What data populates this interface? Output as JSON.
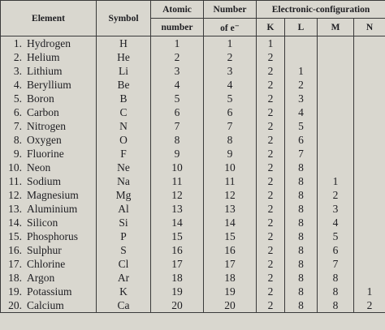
{
  "header": {
    "element": "Element",
    "symbol": "Symbol",
    "atomic": [
      "Atomic",
      "number"
    ],
    "electrons": [
      "Number",
      "of e⁻"
    ],
    "configuration": "Electronic-configuration",
    "shells": [
      "K",
      "L",
      "M",
      "N"
    ]
  },
  "rows": [
    {
      "no": "1.",
      "element": "Hydrogen",
      "symbol": "H",
      "atomic": 1,
      "electrons": 1,
      "config": [
        1
      ]
    },
    {
      "no": "2.",
      "element": "Helium",
      "symbol": "He",
      "atomic": 2,
      "electrons": 2,
      "config": [
        2
      ]
    },
    {
      "no": "3.",
      "element": "Lithium",
      "symbol": "Li",
      "atomic": 3,
      "electrons": 3,
      "config": [
        2,
        1
      ]
    },
    {
      "no": "4.",
      "element": "Beryllium",
      "symbol": "Be",
      "atomic": 4,
      "electrons": 4,
      "config": [
        2,
        2
      ]
    },
    {
      "no": "5.",
      "element": "Boron",
      "symbol": "B",
      "atomic": 5,
      "electrons": 5,
      "config": [
        2,
        3
      ]
    },
    {
      "no": "6.",
      "element": "Carbon",
      "symbol": "C",
      "atomic": 6,
      "electrons": 6,
      "config": [
        2,
        4
      ]
    },
    {
      "no": "7.",
      "element": "Nitrogen",
      "symbol": "N",
      "atomic": 7,
      "electrons": 7,
      "config": [
        2,
        5
      ]
    },
    {
      "no": "8.",
      "element": "Oxygen",
      "symbol": "O",
      "atomic": 8,
      "electrons": 8,
      "config": [
        2,
        6
      ]
    },
    {
      "no": "9.",
      "element": "Fluorine",
      "symbol": "F",
      "atomic": 9,
      "electrons": 9,
      "config": [
        2,
        7
      ]
    },
    {
      "no": "10.",
      "element": "Neon",
      "symbol": "Ne",
      "atomic": 10,
      "electrons": 10,
      "config": [
        2,
        8
      ]
    },
    {
      "no": "11.",
      "element": "Sodium",
      "symbol": "Na",
      "atomic": 11,
      "electrons": 11,
      "config": [
        2,
        8,
        1
      ]
    },
    {
      "no": "12.",
      "element": "Magnesium",
      "symbol": "Mg",
      "atomic": 12,
      "electrons": 12,
      "config": [
        2,
        8,
        2
      ]
    },
    {
      "no": "13.",
      "element": "Aluminium",
      "symbol": "Al",
      "atomic": 13,
      "electrons": 13,
      "config": [
        2,
        8,
        3
      ]
    },
    {
      "no": "14.",
      "element": "Silicon",
      "symbol": "Si",
      "atomic": 14,
      "electrons": 14,
      "config": [
        2,
        8,
        4
      ]
    },
    {
      "no": "15.",
      "element": "Phosphorus",
      "symbol": "P",
      "atomic": 15,
      "electrons": 15,
      "config": [
        2,
        8,
        5
      ]
    },
    {
      "no": "16.",
      "element": "Sulphur",
      "symbol": "S",
      "atomic": 16,
      "electrons": 16,
      "config": [
        2,
        8,
        6
      ]
    },
    {
      "no": "17.",
      "element": "Chlorine",
      "symbol": "Cl",
      "atomic": 17,
      "electrons": 17,
      "config": [
        2,
        8,
        7
      ]
    },
    {
      "no": "18.",
      "element": "Argon",
      "symbol": "Ar",
      "atomic": 18,
      "electrons": 18,
      "config": [
        2,
        8,
        8
      ]
    },
    {
      "no": "19.",
      "element": "Potassium",
      "symbol": "K",
      "atomic": 19,
      "electrons": 19,
      "config": [
        2,
        8,
        8,
        1
      ]
    },
    {
      "no": "20.",
      "element": "Calcium",
      "symbol": "Ca",
      "atomic": 20,
      "electrons": 20,
      "config": [
        2,
        8,
        8,
        2
      ]
    }
  ]
}
